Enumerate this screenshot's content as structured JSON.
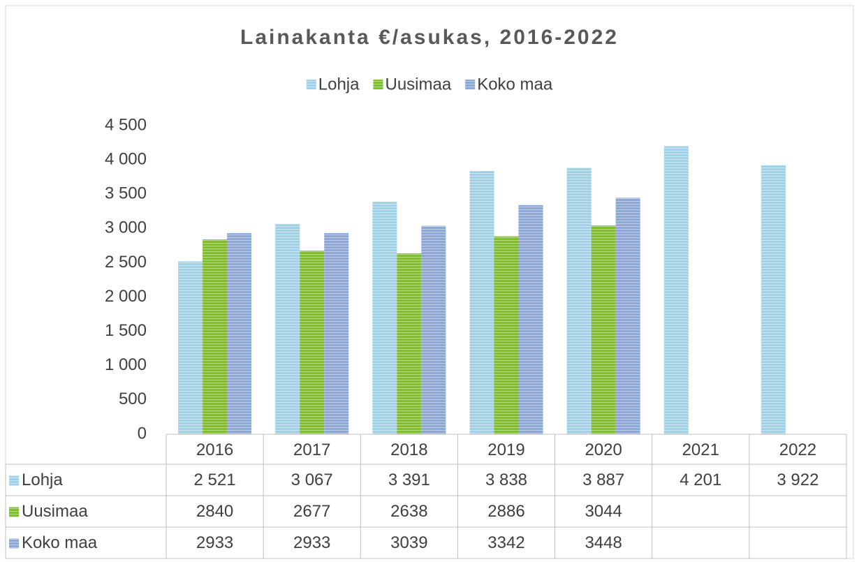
{
  "chart_data": {
    "type": "bar",
    "title": "Lainakanta €/asukas, 2016-2022",
    "categories": [
      "2016",
      "2017",
      "2018",
      "2019",
      "2020",
      "2021",
      "2022"
    ],
    "series": [
      {
        "name": "Lohja",
        "color": "#9dd3ea",
        "values": [
          2521,
          3067,
          3391,
          3838,
          3887,
          4201,
          3922
        ],
        "value_labels": [
          "2 521",
          "3 067",
          "3 391",
          "3 838",
          "3 887",
          "4 201",
          "3 922"
        ]
      },
      {
        "name": "Uusimaa",
        "color": "#7cc21e",
        "values": [
          2840,
          2677,
          2638,
          2886,
          3044,
          null,
          null
        ]
      },
      {
        "name": "Koko maa",
        "color": "#8aa7dc",
        "values": [
          2933,
          2933,
          3039,
          3342,
          3448,
          null,
          null
        ]
      }
    ],
    "ylim": [
      0,
      4500
    ],
    "yticks": [
      0,
      500,
      {
        "value": 1000,
        "label": "1 000"
      },
      {
        "value": 1500,
        "label": "1 500"
      },
      {
        "value": 2000,
        "label": "2 000"
      },
      {
        "value": 2500,
        "label": "2 500"
      },
      {
        "value": 3000,
        "label": "3 000"
      },
      {
        "value": 3500,
        "label": "3 500"
      },
      {
        "value": 4000,
        "label": "4 000"
      },
      {
        "value": 4500,
        "label": "4 500"
      }
    ],
    "grid": false,
    "legend": "top"
  }
}
